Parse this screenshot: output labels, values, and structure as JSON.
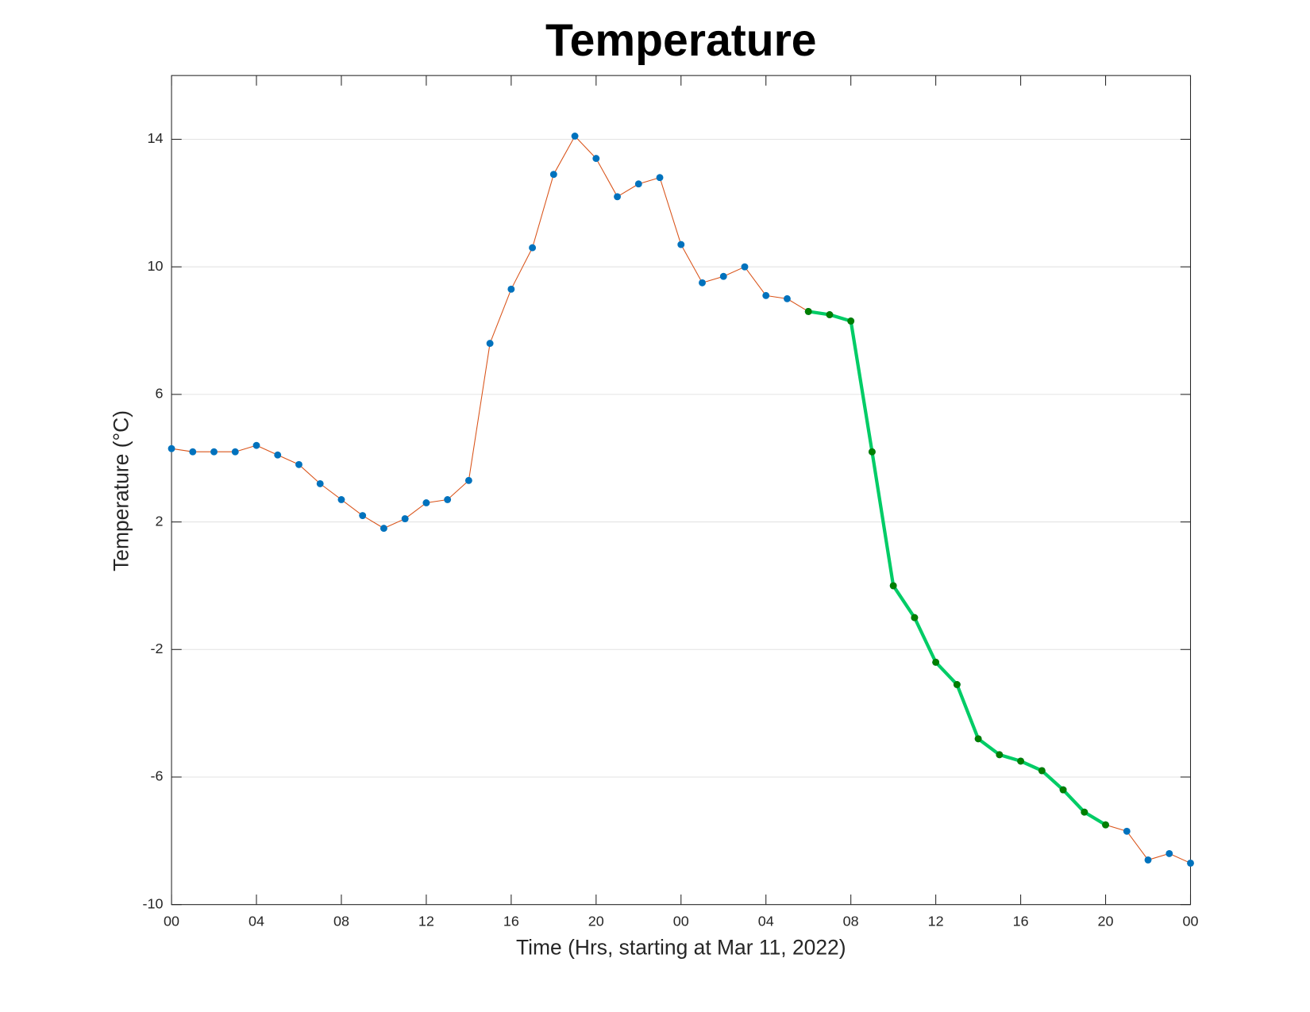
{
  "chart_data": {
    "type": "line",
    "title": "Temperature",
    "xlabel": "Time (Hrs, starting at Mar 11, 2022)",
    "ylabel": "Temperature (°C)",
    "x": [
      0,
      1,
      2,
      3,
      4,
      5,
      6,
      7,
      8,
      9,
      10,
      11,
      12,
      13,
      14,
      15,
      16,
      17,
      18,
      19,
      20,
      21,
      22,
      23,
      24,
      25,
      26,
      27,
      28,
      29,
      30,
      31,
      32,
      33,
      34,
      35,
      36,
      37,
      38,
      39,
      40,
      41,
      42,
      43,
      44,
      45,
      46,
      47,
      48
    ],
    "series": [
      {
        "color": "#d95319",
        "marker_color": "#0072bd",
        "line_width": 1,
        "values": [
          4.3,
          4.2,
          4.2,
          4.2,
          4.4,
          4.1,
          3.8,
          3.2,
          2.7,
          2.2,
          1.8,
          2.1,
          2.6,
          2.7,
          3.3,
          7.6,
          9.3,
          10.6,
          12.9,
          14.1,
          13.4,
          12.2,
          12.6,
          12.8,
          10.7,
          9.5,
          9.7,
          10.0,
          9.1,
          9.0,
          8.6,
          8.5,
          8.3,
          4.2,
          0.0,
          -1.0,
          -2.4,
          -3.1,
          -4.8,
          -5.3,
          -5.5,
          -5.8,
          -6.4,
          -7.1,
          -7.5,
          -7.7,
          -8.6,
          -8.4,
          -8.7
        ]
      },
      {
        "color": "#00cc66",
        "marker_color": "#007f00",
        "line_width": 4,
        "values": [
          null,
          null,
          null,
          null,
          null,
          null,
          null,
          null,
          null,
          null,
          null,
          null,
          null,
          null,
          null,
          null,
          null,
          null,
          null,
          null,
          null,
          null,
          null,
          null,
          null,
          null,
          null,
          null,
          null,
          null,
          8.6,
          8.5,
          8.3,
          4.2,
          0.0,
          -1.0,
          -2.4,
          -3.1,
          -4.8,
          -5.3,
          -5.5,
          -5.8,
          -6.4,
          -7.1,
          -7.5,
          null,
          null,
          null,
          null
        ]
      }
    ],
    "xlim": [
      0,
      48
    ],
    "xticks": [
      {
        "value": 0,
        "label": "00"
      },
      {
        "value": 4,
        "label": "04"
      },
      {
        "value": 8,
        "label": "08"
      },
      {
        "value": 12,
        "label": "12"
      },
      {
        "value": 16,
        "label": "16"
      },
      {
        "value": 20,
        "label": "20"
      },
      {
        "value": 24,
        "label": "00"
      },
      {
        "value": 28,
        "label": "04"
      },
      {
        "value": 32,
        "label": "08"
      },
      {
        "value": 36,
        "label": "12"
      },
      {
        "value": 40,
        "label": "16"
      },
      {
        "value": 44,
        "label": "20"
      },
      {
        "value": 48,
        "label": "00"
      }
    ],
    "ylim": [
      -10,
      16
    ],
    "yticks": [
      -10,
      -6,
      -2,
      2,
      6,
      10,
      14
    ],
    "grid": "y"
  }
}
